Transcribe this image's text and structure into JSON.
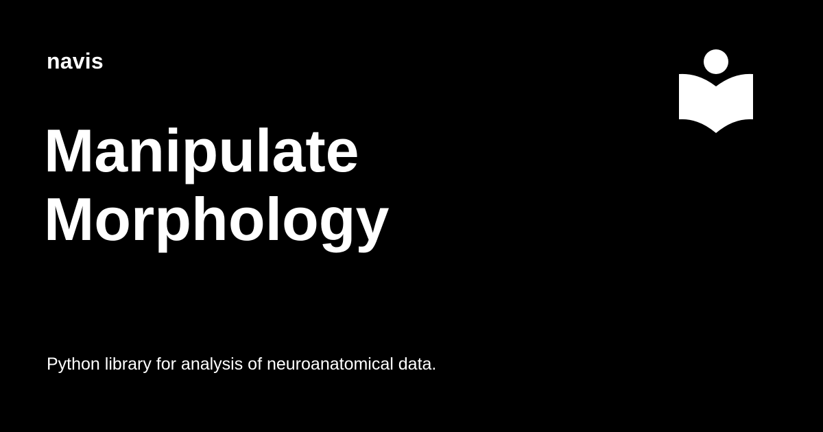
{
  "card": {
    "site_name": "navis",
    "title_lines": [
      "Manipulate",
      "Morphology"
    ],
    "description": "Python library for analysis of neuroanatomical data."
  },
  "colors": {
    "background": "#000000",
    "foreground": "#ffffff"
  },
  "icons": {
    "logo": "reader-book-icon"
  }
}
